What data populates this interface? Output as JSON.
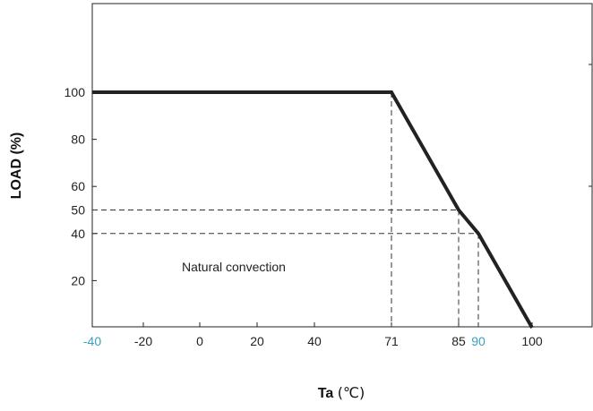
{
  "chart_data": {
    "type": "line",
    "title": "",
    "xlabel": "Ta",
    "xunit": "(℃)",
    "ylabel": "LOAD (%)",
    "xlim": [
      -40,
      100
    ],
    "ylim": [
      0,
      100
    ],
    "x_ticks": [
      {
        "value": -40,
        "label": "-40",
        "color": "#3a9fc0"
      },
      {
        "value": -20,
        "label": "-20",
        "color": "#222222"
      },
      {
        "value": 0,
        "label": "0",
        "color": "#222222"
      },
      {
        "value": 20,
        "label": "20",
        "color": "#222222"
      },
      {
        "value": 40,
        "label": "40",
        "color": "#222222"
      },
      {
        "value": 71,
        "label": "71",
        "color": "#222222"
      },
      {
        "value": 85,
        "label": "85",
        "color": "#222222"
      },
      {
        "value": 90,
        "label": "90",
        "color": "#3a9fc0"
      },
      {
        "value": 100,
        "label": "100",
        "color": "#222222"
      }
    ],
    "y_ticks": [
      {
        "value": 100,
        "label": "100"
      },
      {
        "value": 80,
        "label": "80"
      },
      {
        "value": 60,
        "label": "60"
      },
      {
        "value": 50,
        "label": "50"
      },
      {
        "value": 40,
        "label": "40"
      },
      {
        "value": 20,
        "label": "20"
      }
    ],
    "series": [
      {
        "x": [
          -40,
          71,
          85,
          90,
          100
        ],
        "y": [
          100,
          100,
          50,
          40,
          0
        ],
        "color": "#222222"
      }
    ],
    "reference_lines": [
      {
        "x": 71,
        "y": 100
      },
      {
        "x": 85,
        "y": 50
      },
      {
        "x": 90,
        "y": 40
      }
    ],
    "annotation": "Natural convection",
    "grid": false
  }
}
